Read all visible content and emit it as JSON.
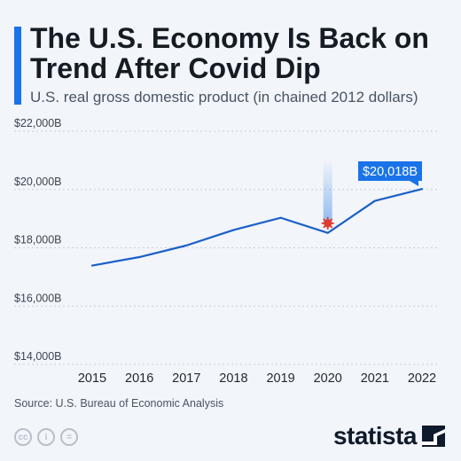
{
  "header": {
    "title": "The U.S. Economy Is Back on Trend After Covid Dip",
    "subtitle": "U.S. real gross domestic product (in chained 2012 dollars)"
  },
  "chart_data": {
    "type": "line",
    "x": [
      2015,
      2016,
      2017,
      2018,
      2019,
      2020,
      2021,
      2022
    ],
    "series": [
      {
        "values": [
          17390,
          17680,
          18080,
          18610,
          19030,
          18510,
          19610,
          20018
        ],
        "color": "#1a5fc8"
      }
    ],
    "ylim": [
      14000,
      22000
    ],
    "yticks": [
      14000,
      16000,
      18000,
      20000,
      22000
    ],
    "ytick_labels": [
      "$14,000B",
      "$16,000B",
      "$18,000B",
      "$20,000B",
      "$22,000B"
    ],
    "xtick_labels": [
      "2015",
      "2016",
      "2017",
      "2018",
      "2019",
      "2020",
      "2021",
      "2022"
    ],
    "grid": "horizontal dashed",
    "annotations": [
      {
        "x": 2020,
        "y": 18840,
        "icon": "virus-icon",
        "color": "#e03a2f"
      },
      {
        "x": 2022,
        "y": 20018,
        "label": "$20,018B",
        "color": "#1a73e8"
      }
    ]
  },
  "footer": {
    "source": "Source: U.S. Bureau of Economic Analysis",
    "license_icons": [
      "cc",
      "i",
      "="
    ],
    "brand": "statista"
  }
}
